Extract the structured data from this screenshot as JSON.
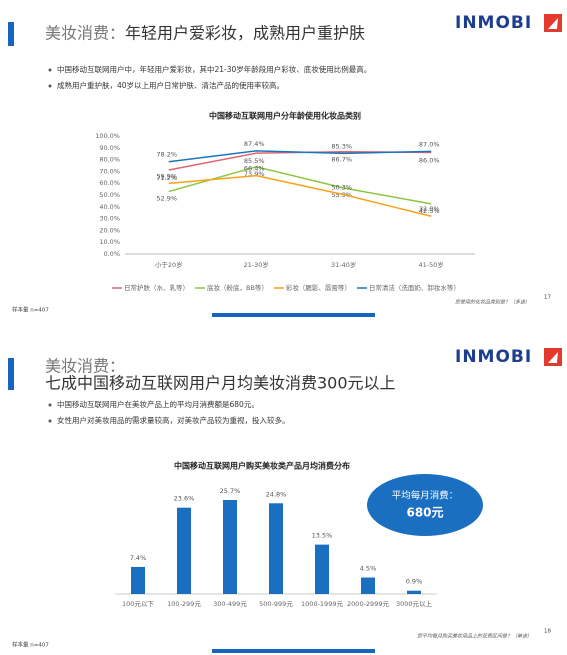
{
  "slides": [
    {
      "title_prefix": "美妆消费：",
      "title": "年轻用户爱彩妆，成熟用户重护肤",
      "logo": "INMOBI",
      "bullets": [
        "中国移动互联网用户中，年轻用户爱彩妆，其中21-30岁年龄段用户彩妆、底妆使用比例最高。",
        "成熟用户重护肤，40岁以上用户日常护肤、清洁产品的使用率较高。"
      ],
      "footnote": "您使用的化妆品类别是？（多选）",
      "page_number": "17",
      "sample": "样本量 n=407"
    },
    {
      "title_prefix": "美妆消费：",
      "title": "七成中国移动互联网用户月均美妆消费300元以上",
      "logo": "INMOBI",
      "bullets": [
        "中国移动互联网用户在美妆产品上的平均月消费额是680元。",
        "女性用户对美妆用品的需求量较高，对美妆产品较为重视，投入较多。"
      ],
      "callout": [
        "平均每月消费：",
        "680元"
      ],
      "footnote": "您平均每月购买美妆用品上的花费区间是？（单选）",
      "page_number": "18",
      "sample": "样本量 n=407"
    }
  ],
  "chart_data": [
    {
      "type": "line",
      "title": "中国移动互联网用户分年龄使用化妆品类别",
      "categories": [
        "小于20岁",
        "21-30岁",
        "31-40岁",
        "41-50岁"
      ],
      "ylim": [
        0,
        100
      ],
      "yticks": [
        {
          "value": 0,
          "label": "0.0%"
        },
        {
          "value": 10,
          "label": "10.0%"
        },
        {
          "value": 20,
          "label": "20.0%"
        },
        {
          "value": 30,
          "label": "30.0%"
        },
        {
          "value": 40,
          "label": "40.0%"
        },
        {
          "value": 50,
          "label": "50.0%"
        },
        {
          "value": 60,
          "label": "60.0%"
        },
        {
          "value": 70,
          "label": "70.0%"
        },
        {
          "value": 80,
          "label": "80.0%"
        },
        {
          "value": 90,
          "label": "90.0%"
        },
        {
          "value": 100,
          "label": "100.0%"
        }
      ],
      "grid": false,
      "series": [
        {
          "name": "日常护肤（水、乳等）",
          "color": "#e06473",
          "values": [
            71.2,
            85.5,
            86.7,
            86.0
          ],
          "value_labels": [
            "71.2%",
            "85.5%",
            "86.7%",
            "86.0%"
          ]
        },
        {
          "name": "底妆（粉底，BB等）",
          "color": "#8dc63f",
          "values": [
            52.9,
            73.9,
            55.9,
            42.5
          ],
          "value_labels": [
            "52.9%",
            "73.9%",
            "55.9%",
            "42.5%"
          ]
        },
        {
          "name": "彩妆（腮影、唇膏等）",
          "color": "#f7a21b",
          "values": [
            59.9,
            66.4,
            50.3,
            32.0
          ],
          "value_labels": [
            "59.9%",
            "66.4%",
            "50.3%",
            "32.0%"
          ]
        },
        {
          "name": "日常清洁（洗面奶、卸妆水等）",
          "color": "#1b75bb",
          "values": [
            78.2,
            87.4,
            85.3,
            87.0
          ],
          "value_labels": [
            "78.2%",
            "87.4%",
            "85.3%",
            "87.0%"
          ]
        }
      ]
    },
    {
      "type": "bar",
      "title": "中国移动互联网用户购买美妆类产品月均消费分布",
      "categories": [
        "100元以下",
        "100-299元",
        "300-499元",
        "500-999元",
        "1000-1999元",
        "2000-2999元",
        "3000元以上"
      ],
      "values": [
        7.4,
        23.6,
        25.7,
        24.8,
        13.5,
        4.5,
        0.9
      ],
      "value_labels": [
        "7.4%",
        "23.6%",
        "25.7%",
        "24.8%",
        "13.5%",
        "4.5%",
        "0.9%"
      ],
      "color": "#1a6fc0"
    }
  ]
}
